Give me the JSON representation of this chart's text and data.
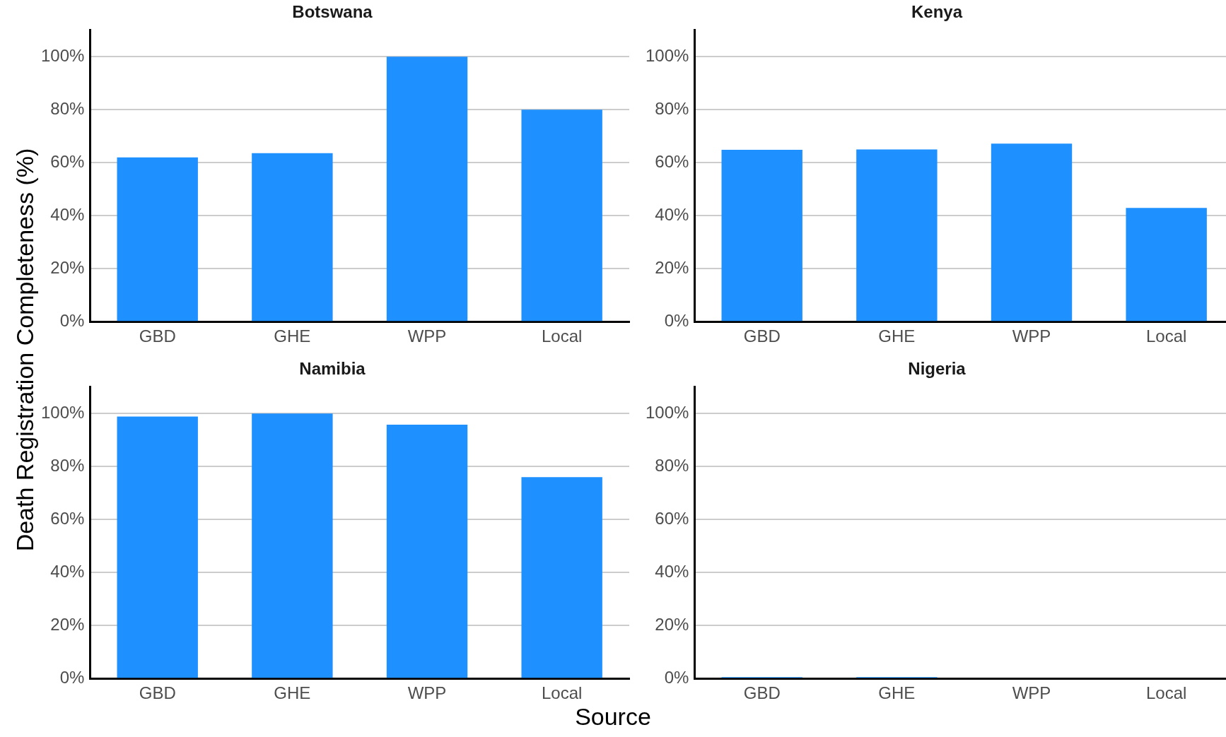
{
  "chart_data": [
    {
      "type": "bar",
      "title": "Botswana",
      "ylabel": "Death Registration Completeness (%)",
      "categories": [
        "GBD",
        "GHE",
        "WPP",
        "Local"
      ],
      "values": [
        62,
        63.6,
        100,
        80
      ],
      "color": "#1e90ff",
      "ylim": [
        0,
        110
      ],
      "yticks": [
        {
          "value": 0,
          "label": "0%"
        },
        {
          "value": 20,
          "label": "20%"
        },
        {
          "value": 40,
          "label": "40%"
        },
        {
          "value": 60,
          "label": "60%"
        },
        {
          "value": 80,
          "label": "80%"
        },
        {
          "value": 100,
          "label": "100%"
        }
      ],
      "grid": "y",
      "legend": false
    },
    {
      "type": "bar",
      "title": "Kenya",
      "categories": [
        "GBD",
        "GHE",
        "WPP",
        "Local"
      ],
      "values": [
        64.9,
        65,
        67.2,
        42.9
      ],
      "color": "#1e90ff",
      "ylim": [
        0,
        110
      ],
      "yticks": [
        {
          "value": 0,
          "label": "0%"
        },
        {
          "value": 20,
          "label": "20%"
        },
        {
          "value": 40,
          "label": "40%"
        },
        {
          "value": 60,
          "label": "60%"
        },
        {
          "value": 80,
          "label": "80%"
        },
        {
          "value": 100,
          "label": "100%"
        }
      ],
      "grid": "y",
      "legend": false
    },
    {
      "type": "bar",
      "title": "Namibia",
      "xlabel": "Source",
      "categories": [
        "GBD",
        "GHE",
        "WPP",
        "Local"
      ],
      "values": [
        98.9,
        100,
        95.8,
        76
      ],
      "color": "#1e90ff",
      "ylim": [
        0,
        110
      ],
      "yticks": [
        {
          "value": 0,
          "label": "0%"
        },
        {
          "value": 20,
          "label": "20%"
        },
        {
          "value": 40,
          "label": "40%"
        },
        {
          "value": 60,
          "label": "60%"
        },
        {
          "value": 80,
          "label": "80%"
        },
        {
          "value": 100,
          "label": "100%"
        }
      ],
      "grid": "y",
      "legend": false
    },
    {
      "type": "bar",
      "title": "Nigeria",
      "categories": [
        "GBD",
        "GHE",
        "WPP",
        "Local"
      ],
      "values": [
        0.5,
        0.5,
        null,
        null
      ],
      "color": "#1e90ff",
      "ylim": [
        0,
        110
      ],
      "yticks": [
        {
          "value": 0,
          "label": "0%"
        },
        {
          "value": 20,
          "label": "20%"
        },
        {
          "value": 40,
          "label": "40%"
        },
        {
          "value": 60,
          "label": "60%"
        },
        {
          "value": 80,
          "label": "80%"
        },
        {
          "value": 100,
          "label": "100%"
        }
      ],
      "grid": "y",
      "legend": false
    }
  ]
}
